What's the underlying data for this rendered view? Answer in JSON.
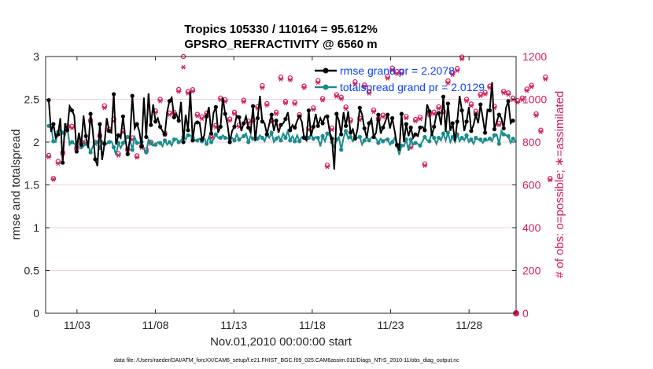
{
  "chart_data": {
    "type": "line",
    "title": "Tropics 105330 / 110164 = 95.612%",
    "subtitle": "GPSRO_REFRACTIVITY @ 6560 m",
    "xlabel": "Nov.01,2010 00:00:00 start",
    "ylabel": "rmse and totalspread",
    "ylabel_right": "# of obs: o=possible; ∗=assimilated",
    "footnote": "data file: /Users/raeder/DAI/ATM_forcXX/CAM6_setup/f.e21.FHIST_BGC.f09_025.CAM6assim.011/Diags_NTrS_2010-11/obs_diag_output.nc",
    "x_tick_labels": [
      "11/03",
      "11/08",
      "11/13",
      "11/18",
      "11/23",
      "11/28"
    ],
    "x_tick_days": [
      3,
      8,
      13,
      18,
      23,
      28
    ],
    "xlim": [
      1,
      31
    ],
    "ylim": [
      0,
      3
    ],
    "y_ticks": [
      "0",
      "0.5",
      "1",
      "1.5",
      "2",
      "2.5",
      "3"
    ],
    "ylim_right": [
      0,
      1200
    ],
    "y_ticks_right": [
      "0",
      "200",
      "400",
      "600",
      "800",
      "1000",
      "1200"
    ],
    "series": [
      {
        "name": "rmse grand pr = 2.2078",
        "color": "#000000",
        "values": [
          2.49,
          2.12,
          2.21,
          2.05,
          2.09,
          2.28,
          1.76,
          2.22,
          2.14,
          2.42,
          2.37,
          2.31,
          1.89,
          2.11,
          1.97,
          2.31,
          2.07,
          1.93,
          2.33,
          2.13,
          1.8,
          1.72,
          2.21,
          1.79,
          1.98,
          2.28,
          2.13,
          2.11,
          2.56,
          1.97,
          2.08,
          2.05,
          2.3,
          2.04,
          1.86,
          2.04,
          2.54,
          2.16,
          2.21,
          2.13,
          1.95,
          2.52,
          2.06,
          2.57,
          2.2,
          2.44,
          2.24,
          2.28,
          2.18,
          2.13,
          2.09,
          2.35,
          2.48,
          2.52,
          2.29,
          2.33,
          2.25,
          2.47,
          2.0,
          2.32,
          2.14,
          2.59,
          2.02,
          2.22,
          2.23,
          2.23,
          2.03,
          2.08,
          2.3,
          2.41,
          2.1,
          2.34,
          2.41,
          2.11,
          2.18,
          2.52,
          2.33,
          2.21,
          2.0,
          2.13,
          2.18,
          2.31,
          2.29,
          2.13,
          2.22,
          2.3,
          2.17,
          2.11,
          2.42,
          2.01,
          2.28,
          2.54,
          2.24,
          2.22,
          2.09,
          2.21,
          2.32,
          2.13,
          2.25,
          2.11,
          2.2,
          2.22,
          2.27,
          2.35,
          2.14,
          2.2,
          2.17,
          2.25,
          2.3,
          2.24,
          2.05,
          2.02,
          2.37,
          2.07,
          2.18,
          2.33,
          2.19,
          2.28,
          2.22,
          2.3,
          2.3,
          2.12,
          2.04,
          1.68,
          2.33,
          2.25,
          2.09,
          2.35,
          2.19,
          2.36,
          2.11,
          2.15,
          2.04,
          2.15,
          2.4,
          2.32,
          2.16,
          2.05,
          2.22,
          2.27,
          2.06,
          2.11,
          2.32,
          2.1,
          2.17,
          2.24,
          2.32,
          2.16,
          2.28,
          2.13,
          1.97,
          1.9,
          2.33,
          2.0,
          2.21,
          2.07,
          2.17,
          2.05,
          2.09,
          2.07,
          2.17,
          2.18,
          2.14,
          2.44,
          2.36,
          2.07,
          2.18,
          2.32,
          2.34,
          2.2,
          2.53,
          2.12,
          2.45,
          2.13,
          2.22,
          2.01,
          2.24,
          2.54,
          2.37,
          2.13,
          2.24,
          2.41,
          2.13,
          2.2,
          2.32,
          2.22,
          2.44,
          2.28,
          2.11,
          2.38,
          2.37,
          2.7,
          2.15,
          2.24,
          2.32,
          2.28,
          2.16,
          2.4,
          2.48,
          2.22,
          2.25
        ]
      },
      {
        "name": "totalspread grand pr = 2.0129",
        "color": "#1a8c8c",
        "values": [
          2.19,
          2.18,
          2.01,
          2.0,
          2.12,
          2.15,
          2.11,
          2.08,
          2.17,
          1.97,
          2.0,
          1.98,
          1.96,
          2.09,
          1.94,
          1.95,
          1.98,
          1.96,
          1.88,
          1.95,
          1.99,
          2.01,
          1.93,
          2.01,
          1.99,
          1.98,
          2.0,
          2.01,
          1.94,
          1.85,
          1.99,
          1.93,
          1.99,
          2.03,
          2.06,
          2.03,
          1.91,
          2.06,
          1.99,
          1.99,
          2.0,
          1.92,
          1.88,
          2.03,
          1.99,
          1.96,
          1.97,
          2.0,
          1.99,
          1.95,
          2.02,
          1.97,
          2.0,
          1.96,
          2.03,
          2.04,
          2.0,
          2.02,
          2.06,
          2.03,
          2.08,
          2.08,
          2.05,
          2.02,
          2.02,
          2.04,
          2.01,
          2.05,
          1.98,
          2.06,
          2.0,
          2.03,
          2.09,
          2.05,
          2.05,
          2.08,
          2.05,
          2.05,
          2.03,
          2.05,
          2.02,
          2.09,
          2.03,
          2.05,
          2.07,
          2.1,
          2.0,
          2.07,
          2.04,
          2.07,
          2.04,
          2.08,
          2.05,
          2.01,
          2.09,
          2.05,
          2.11,
          2.0,
          2.04,
          2.07,
          2.02,
          2.1,
          2.05,
          2.13,
          2.02,
          2.07,
          2.01,
          2.08,
          2.01,
          2.06,
          2.06,
          2.02,
          2.05,
          2.09,
          2.04,
          2.06,
          2.05,
          1.95,
          2.07,
          2.01,
          2.1,
          2.08,
          2.0,
          1.94,
          2.03,
          2.06,
          1.91,
          2.05,
          2.13,
          2.04,
          2.06,
          2.01,
          2.06,
          2.05,
          2.06,
          1.97,
          2.02,
          2.06,
          2.02,
          2.05,
          2.06,
          2.04,
          1.99,
          2.04,
          2.01,
          2.03,
          2.03,
          1.97,
          2.0,
          2.05,
          1.96,
          1.85,
          1.96,
          1.95,
          2.03,
          1.9,
          2.03,
          1.97,
          1.99,
          1.98,
          1.96,
          2.01,
          2.06,
          2.02,
          2.01,
          2.11,
          2.05,
          1.98,
          2.05,
          2.02,
          2.1,
          2.02,
          2.11,
          2.0,
          2.06,
          2.0,
          2.09,
          2.01,
          2.05,
          2.02,
          2.08,
          2.0,
          2.03,
          1.98,
          2.05,
          2.03,
          2.03,
          1.99,
          2.03,
          2.02,
          2.04,
          2.01,
          2.08,
          2.09,
          1.98,
          2.13,
          2.09,
          2.08,
          2.07,
          1.99,
          2.04,
          2.01
        ]
      }
    ],
    "obs_possible": {
      "name": "possible obs",
      "color": "#d31f5b",
      "values": [
        738,
        790,
        630,
        566,
        710,
        758,
        752,
        820,
        876,
        882,
        874,
        886,
        774,
        818,
        800,
        820,
        802,
        840,
        902,
        820,
        800,
        732,
        832,
        788,
        970,
        1008,
        860,
        700,
        908,
        736,
        746,
        810,
        854,
        862,
        768,
        832,
        820,
        860,
        736,
        798,
        782,
        826,
        764,
        806,
        800,
        900,
        946,
        912,
        1000,
        988,
        842,
        970,
        936,
        1080,
        940,
        1009,
        1046,
        1100,
        1200,
        1035,
        1036,
        1005,
        1045,
        962,
        930,
        892,
        918,
        936,
        936,
        988,
        828,
        838,
        878,
        1002,
        1006,
        1012,
        998,
        990,
        908,
        966,
        940,
        906,
        880,
        988,
        996,
        938,
        898,
        1013,
        904,
        938,
        966,
        909,
        1064,
        1024,
        980,
        995,
        902,
        1118,
        940,
        898,
        1104,
        860,
        990,
        860,
        1100,
        1014,
        986,
        1066,
        928,
        966,
        1062,
        932,
        866,
        996,
        960,
        1076,
        1088,
        1006,
        1004,
        990,
        692,
        898,
        866,
        920,
        1022,
        974,
        1010,
        980,
        964,
        1048,
        904,
        872,
        1082,
        910,
        912,
        1010,
        1067,
        1100,
        1036,
        1050,
        950,
        954,
        910,
        878,
        926,
        905,
        1108,
        1115,
        1146,
        1066,
        1130,
        1134,
        1130,
        886,
        920,
        840,
        782,
        934,
        906,
        966,
        916,
        942,
        698,
        920,
        934,
        924,
        940,
        910,
        965,
        1110,
        944,
        1042,
        1086,
        975,
        1125,
        1108,
        1144,
        1055,
        1198,
        964,
        1000,
        958,
        978,
        1010,
        944,
        958,
        1024,
        1096,
        1032,
        1070,
        1062,
        1090,
        968,
        960,
        888,
        1010,
        1038,
        990,
        1030,
        1016,
        1006,
        980,
        994,
        1008,
        1006,
        1022,
        1048,
        980,
        1066,
        1100,
        932,
        1000,
        856,
        870,
        1104,
        1010,
        630
      ]
    },
    "obs_assimilated": {
      "name": "assimilated obs",
      "color": "#d31f5b",
      "values": [
        730,
        770,
        625,
        560,
        700,
        748,
        744,
        812,
        868,
        872,
        866,
        878,
        766,
        810,
        792,
        812,
        794,
        832,
        894,
        812,
        792,
        724,
        824,
        780,
        960,
        998,
        852,
        692,
        898,
        728,
        738,
        802,
        846,
        854,
        760,
        824,
        812,
        852,
        728,
        790,
        774,
        818,
        756,
        798,
        792,
        892,
        938,
        904,
        992,
        980,
        834,
        962,
        928,
        1070,
        932,
        1000,
        1036,
        1090,
        1150,
        1025,
        1028,
        997,
        1037,
        954,
        922,
        884,
        910,
        928,
        928,
        980,
        820,
        830,
        870,
        994,
        998,
        1004,
        990,
        982,
        900,
        958,
        932,
        898,
        872,
        980,
        988,
        930,
        890,
        1005,
        896,
        930,
        958,
        901,
        1054,
        1016,
        972,
        987,
        894,
        1108,
        932,
        890,
        1094,
        852,
        982,
        852,
        1090,
        1006,
        978,
        1058,
        920,
        958,
        1054,
        924,
        858,
        988,
        952,
        1066,
        1078,
        998,
        996,
        982,
        684,
        890,
        858,
        912,
        1014,
        966,
        1002,
        972,
        956,
        1040,
        896,
        864,
        1072,
        902,
        904,
        1002,
        1059,
        1090,
        1028,
        1042,
        942,
        946,
        902,
        870,
        918,
        897,
        1098,
        1105,
        1136,
        1058,
        1120,
        1124,
        1120,
        878,
        912,
        832,
        774,
        926,
        898,
        958,
        908,
        934,
        690,
        912,
        926,
        916,
        932,
        902,
        957,
        1100,
        936,
        1034,
        1076,
        967,
        1115,
        1098,
        1134,
        1047,
        1188,
        956,
        992,
        950,
        970,
        1002,
        936,
        950,
        1016,
        1086,
        1024,
        1062,
        1054,
        1080,
        960,
        952,
        880,
        1002,
        1030,
        982,
        1022,
        1008,
        998,
        972,
        986,
        1000,
        998,
        1014,
        1040,
        972,
        1058,
        1090,
        924,
        992,
        848,
        862,
        1094,
        1002,
        622
      ]
    },
    "obs_end_marker": {
      "x": 31.0,
      "value": 0
    }
  }
}
